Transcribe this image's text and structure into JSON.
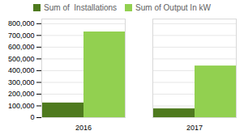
{
  "chart_data": {
    "type": "bar",
    "categories": [
      "2016",
      "2017"
    ],
    "series": [
      {
        "name": "Sum of  Installations",
        "color": "#4e7a1e",
        "values": [
          125000,
          75000
        ]
      },
      {
        "name": "Sum of Output In kW",
        "color": "#92d050",
        "values": [
          730000,
          440000
        ]
      }
    ],
    "ylim": [
      0,
      840000
    ],
    "yticks": [
      0,
      {
        "value": 100000,
        "label": "100,000"
      },
      {
        "value": 200000,
        "label": "200,000"
      },
      {
        "value": 300000,
        "label": "300,000"
      },
      {
        "value": 400000,
        "label": "400,000"
      },
      {
        "value": 500000,
        "label": "500,000"
      },
      {
        "value": 600000,
        "label": "600,000"
      },
      {
        "value": 700000,
        "label": "700,000"
      },
      {
        "value": 800000,
        "label": "800,000"
      }
    ],
    "grid": true,
    "legend": "top"
  }
}
